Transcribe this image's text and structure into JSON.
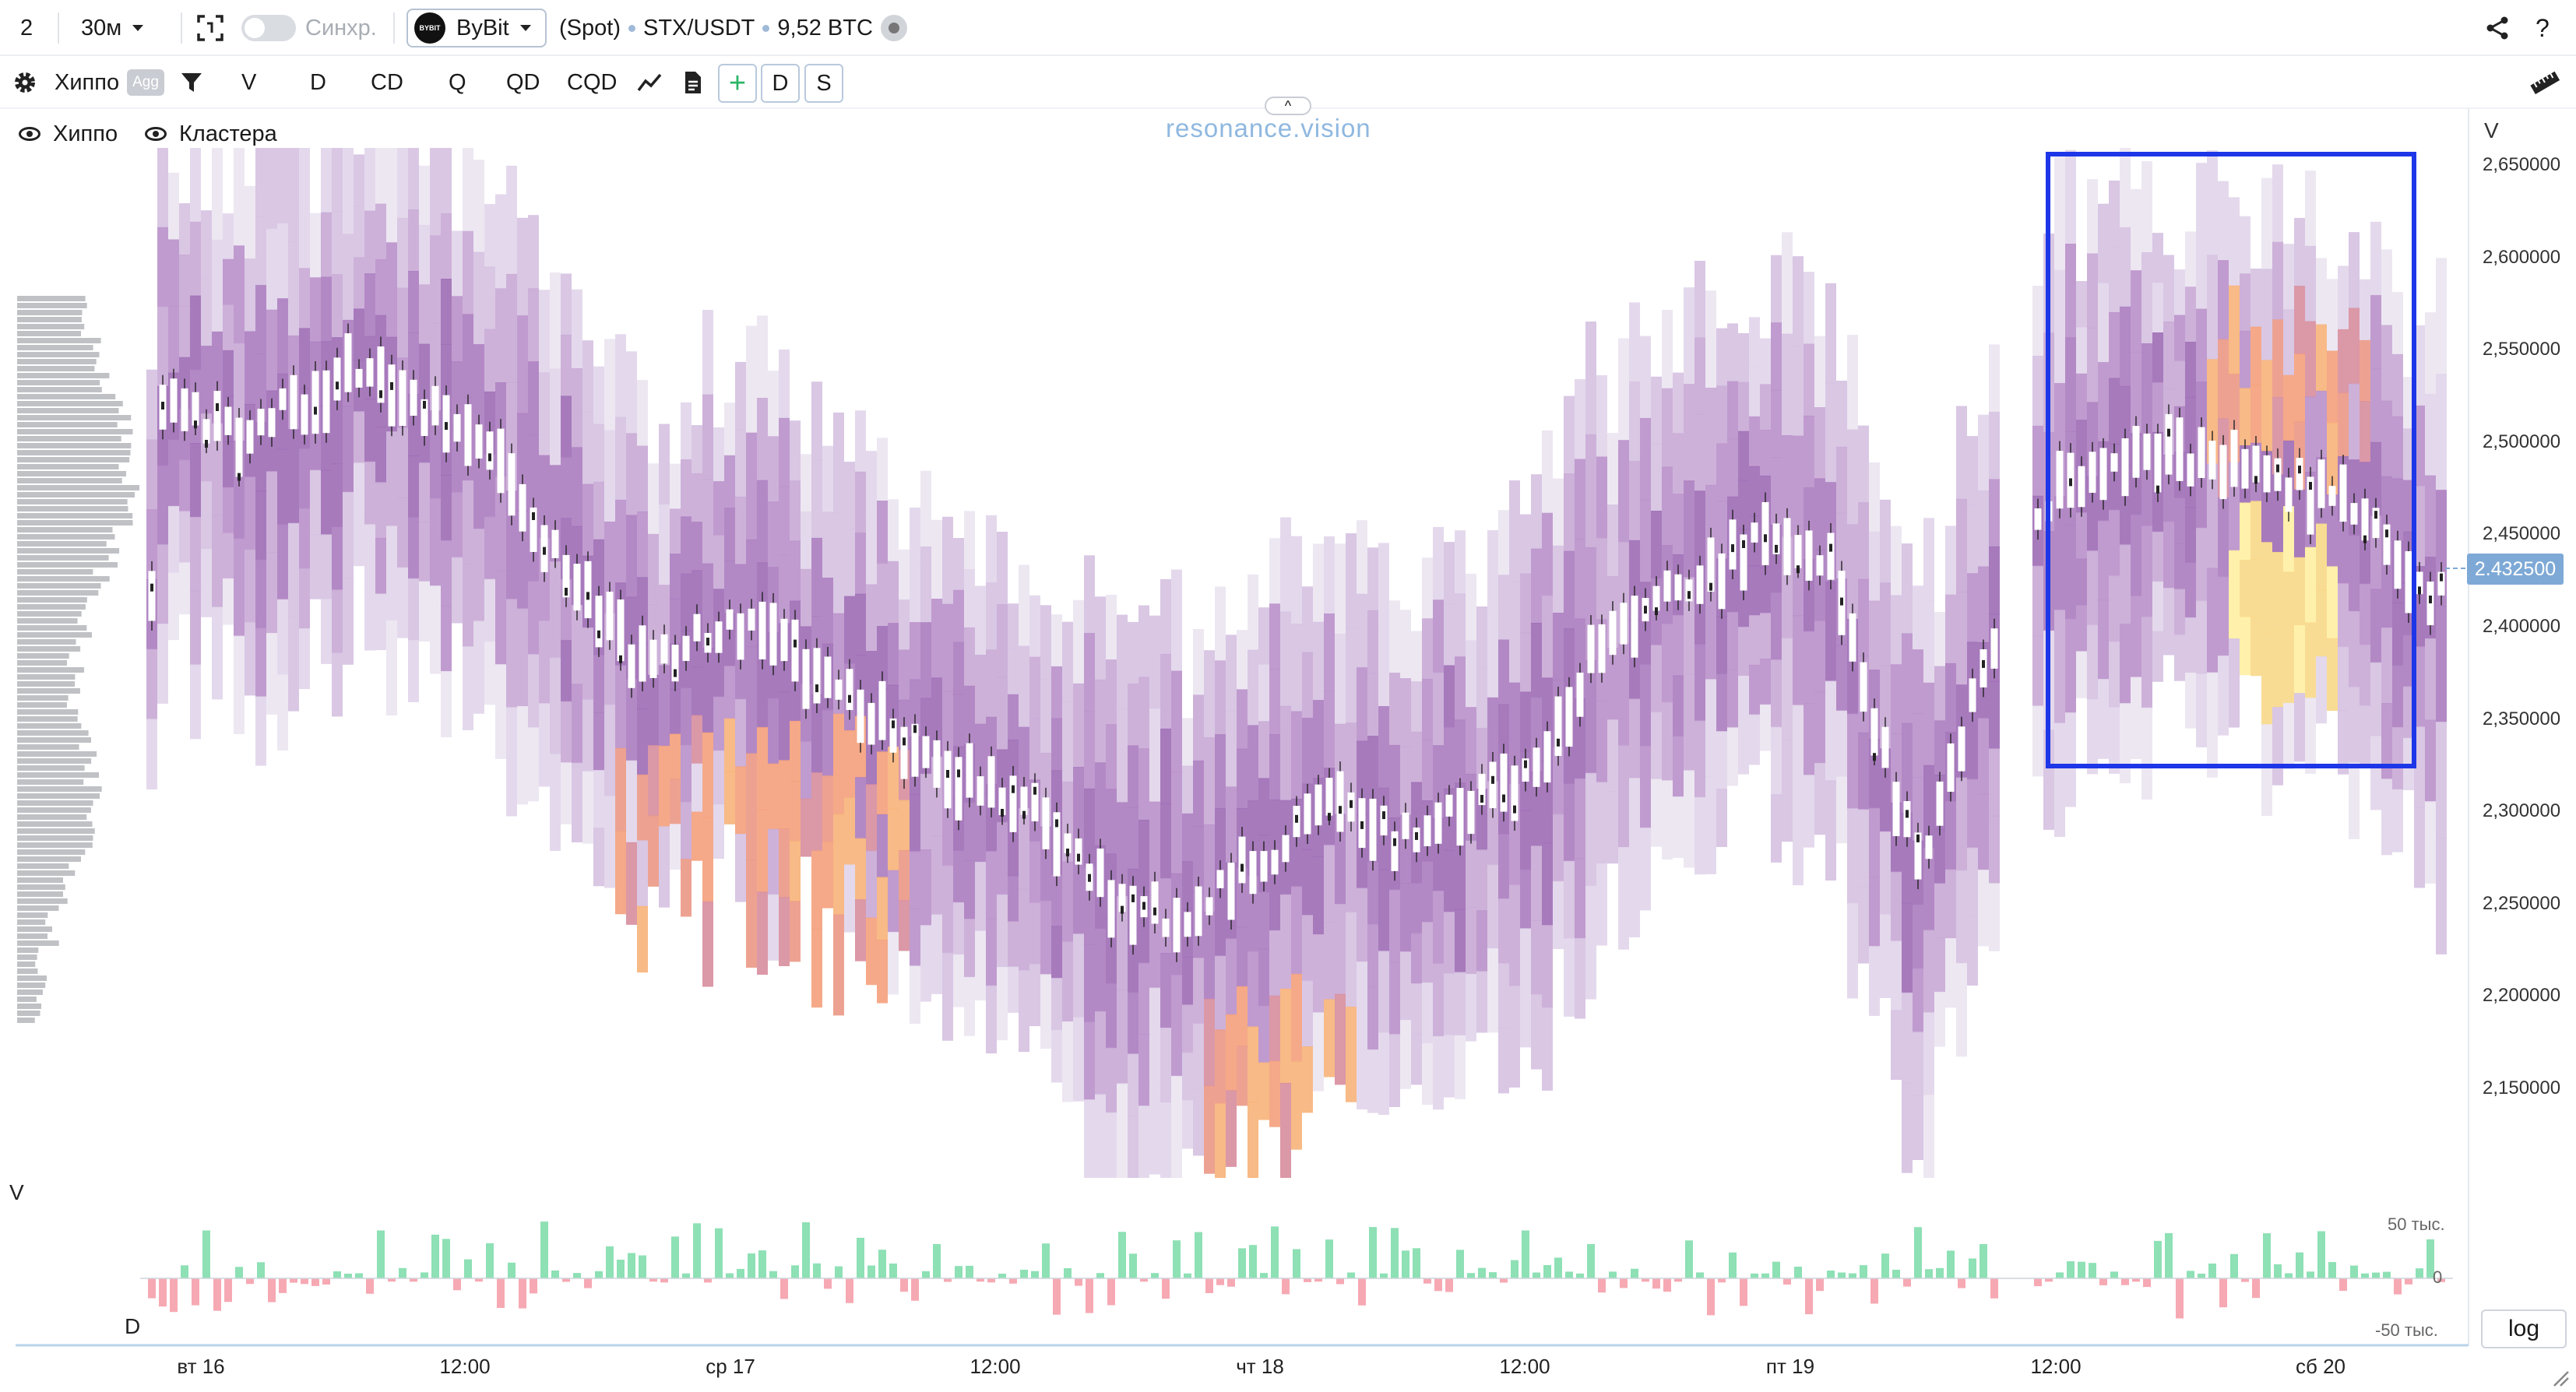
{
  "topbar": {
    "layout_count": "2",
    "timeframe": "30м",
    "sync_label": "Синхр.",
    "exchange": "ByBit",
    "exchange_logo_text": "BYBIT",
    "market": "(Spot)",
    "pair": "STX/USDT",
    "volume": "9,52 BTC"
  },
  "toolbar": {
    "indicator_name": "Хиппо",
    "agg_label": "Agg",
    "buttons": [
      "V",
      "D",
      "CD",
      "Q",
      "QD",
      "CQD"
    ],
    "plus_label": "+",
    "d_label": "D",
    "s_label": "S"
  },
  "legend": {
    "hippo": "Хиппо",
    "clusters": "Кластера"
  },
  "watermark": "resonance.vision",
  "price_axis": {
    "title": "V",
    "labels": [
      "2,650000",
      "2,600000",
      "2,550000",
      "2,500000",
      "2,450000",
      "2,400000",
      "2,350000",
      "2,300000",
      "2,250000",
      "2,200000",
      "2,150000"
    ],
    "current_price": "2.432500"
  },
  "time_axis": {
    "labels": [
      "вт 16",
      "12:00",
      "ср 17",
      "12:00",
      "чт 18",
      "12:00",
      "пт 19",
      "12:00",
      "сб 20"
    ]
  },
  "volume_panel": {
    "v_label": "V",
    "d_label": "D",
    "top_label": "50 тыс.",
    "zero_label": "0",
    "bottom_label": "-50 тыс."
  },
  "log_button": "log",
  "colors": {
    "accent": "#2a4fe0",
    "buy": "#8ee0b5",
    "sell": "#f6a9b3",
    "heat_low": "#e6dcee",
    "heat_mid": "#b98ccb",
    "heat_high": "#f2a07d",
    "heat_peak": "#fff2a0",
    "price_tag": "#7ea9d6"
  },
  "icons": [
    "chevron-down-icon",
    "screenshot-icon",
    "gear-icon",
    "filter-icon",
    "line-chart-icon",
    "document-icon",
    "share-icon",
    "help-icon",
    "ruler-icon",
    "eye-icon",
    "resize-icon"
  ]
}
